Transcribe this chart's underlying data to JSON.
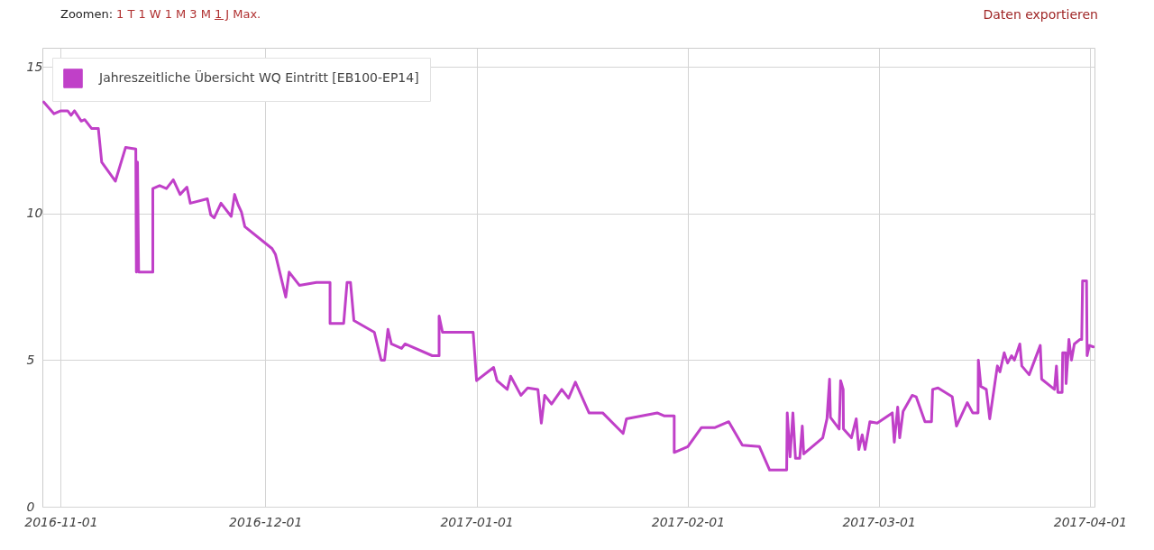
{
  "chart_data": {
    "type": "line",
    "annotations": [
      "Zoomen:",
      "1 T",
      "1 W",
      "1 M",
      "3 M",
      "1 J",
      "Max.",
      "Daten exportieren"
    ],
    "x": [
      "2016-10-29T12:00",
      "2016-10-31",
      "2016-11-01",
      "2016-11-02",
      "2016-11-02T12:00",
      "2016-11-03",
      "2016-11-04",
      "2016-11-04T12:00",
      "2016-11-05T12:00",
      "2016-11-06T12:00",
      "2016-11-07",
      "2016-11-09",
      "2016-11-10T12:00",
      "2016-11-12",
      "2016-11-12T02:00",
      "2016-11-12T06:00",
      "2016-11-12T10:00",
      "2016-11-14T12:00",
      "2016-11-14T12:00",
      "2016-11-15T12:00",
      "2016-11-16T12:00",
      "2016-11-17T12:00",
      "2016-11-18T12:00",
      "2016-11-19T12:00",
      "2016-11-20",
      "2016-11-22T12:00",
      "2016-11-23",
      "2016-11-23T12:00",
      "2016-11-24T12:00",
      "2016-11-26",
      "2016-11-26T12:00",
      "2016-11-27",
      "2016-11-27T12:00",
      "2016-11-28",
      "2016-12-02",
      "2016-12-02T12:00",
      "2016-12-04",
      "2016-12-04T12:00",
      "2016-12-06",
      "2016-12-08T12:00",
      "2016-12-10T12:00",
      "2016-12-10T12:00",
      "2016-12-12T12:00",
      "2016-12-13",
      "2016-12-13T12:00",
      "2016-12-14",
      "2016-12-17",
      "2016-12-18",
      "2016-12-18T12:00",
      "2016-12-19",
      "2016-12-19T12:00",
      "2016-12-21",
      "2016-12-21T12:00",
      "2016-12-25T12:00",
      "2016-12-26T12:00",
      "2016-12-26T12:00",
      "2016-12-27",
      "2016-12-31T12:00",
      "2017-01-01",
      "2017-01-03T12:00",
      "2017-01-04",
      "2017-01-05T12:00",
      "2017-01-06",
      "2017-01-07T12:00",
      "2017-01-08T12:00",
      "2017-01-10",
      "2017-01-10T12:00",
      "2017-01-11",
      "2017-01-12",
      "2017-01-13T12:00",
      "2017-01-14T12:00",
      "2017-01-15T12:00",
      "2017-01-17T12:00",
      "2017-01-19T12:00",
      "2017-01-22T12:00",
      "2017-01-23",
      "2017-01-27T12:00",
      "2017-01-28T12:00",
      "2017-01-30",
      "2017-01-30",
      "2017-02-01",
      "2017-02-03",
      "2017-02-05",
      "2017-02-07",
      "2017-02-09",
      "2017-02-11T12:00",
      "2017-02-13",
      "2017-02-15T12:00",
      "2017-02-15T14:00",
      "2017-02-16T00:00",
      "2017-02-16T10:00",
      "2017-02-16T19:00",
      "2017-02-17T10:00",
      "2017-02-17T19:00",
      "2017-02-18T00:00",
      "2017-02-20T19:00",
      "2017-02-21T10:00",
      "2017-02-21T19:00",
      "2017-02-21T22:00",
      "2017-02-23T05:00",
      "2017-02-23T10:00",
      "2017-02-23T19:00",
      "2017-02-23T20:00",
      "2017-02-25T00:00",
      "2017-02-25T17:00",
      "2017-02-26T02:00",
      "2017-02-26T14:00",
      "2017-02-27T00:00",
      "2017-02-27T17:00",
      "2017-02-28T19:00",
      "2017-03-03T00:00",
      "2017-03-03T07:00",
      "2017-03-03T19:00",
      "2017-03-04T02:00",
      "2017-03-04T14:00",
      "2017-03-05T22:00",
      "2017-03-06T12:00",
      "2017-03-07T19:00",
      "2017-03-08T18:00",
      "2017-03-08T22:00",
      "2017-03-09T17:00",
      "2017-03-11T19:00",
      "2017-03-12T10:00",
      "2017-03-14T00:00",
      "2017-03-14T19:00",
      "2017-03-15T14:00",
      "2017-03-15T15:00",
      "2017-03-16T00:00",
      "2017-03-16T19:00",
      "2017-03-17T07:00",
      "2017-03-18T10:00",
      "2017-03-18T19:00",
      "2017-03-19T10:00",
      "2017-03-19T22:00",
      "2017-03-20T12:00",
      "2017-03-20T22:00",
      "2017-03-21T17:00",
      "2017-03-22T00:00",
      "2017-03-23T02:00",
      "2017-03-24T17:00",
      "2017-03-24T22:00",
      "2017-03-26T19:00",
      "2017-03-27T02:00",
      "2017-03-27T07:00",
      "2017-03-27T22:00",
      "2017-03-28T00:00",
      "2017-03-28T10:00",
      "2017-03-28T12:00",
      "2017-03-28T22:00",
      "2017-03-29T07:00",
      "2017-03-29T17:00",
      "2017-03-30T12:00",
      "2017-03-30T19:00",
      "2017-03-30T22:00",
      "2017-03-31T12:00",
      "2017-03-31T14:00",
      "2017-03-31T22:00",
      "2017-04-01T12:00"
    ],
    "series": [
      {
        "name": "Jahreszeitliche Übersicht WQ Eintritt [EB100-EP14]",
        "color": "#c040c8",
        "values": [
          13.8,
          13.4,
          13.5,
          13.5,
          13.35,
          13.5,
          13.15,
          13.2,
          12.9,
          12.9,
          11.75,
          11.1,
          12.25,
          12.2,
          8.0,
          11.75,
          8.0,
          8.0,
          10.85,
          10.95,
          10.85,
          11.15,
          10.65,
          10.9,
          10.35,
          10.5,
          9.95,
          9.85,
          10.35,
          9.9,
          10.65,
          10.3,
          10.05,
          9.55,
          8.8,
          8.6,
          7.15,
          8.0,
          7.55,
          7.65,
          7.65,
          6.25,
          6.25,
          7.65,
          7.65,
          6.35,
          5.95,
          5.0,
          5.0,
          6.05,
          5.55,
          5.4,
          5.55,
          5.15,
          5.15,
          6.5,
          5.95,
          5.95,
          4.3,
          4.75,
          4.3,
          4.0,
          4.45,
          3.8,
          4.05,
          4.0,
          2.85,
          3.8,
          3.5,
          4.0,
          3.7,
          4.25,
          3.2,
          3.2,
          2.5,
          3.0,
          3.2,
          3.1,
          3.1,
          1.85,
          2.05,
          2.7,
          2.7,
          2.9,
          2.1,
          2.05,
          1.25,
          1.25,
          3.2,
          1.7,
          3.2,
          1.65,
          1.65,
          2.75,
          1.8,
          2.35,
          3.0,
          4.35,
          3.05,
          2.65,
          4.3,
          4.0,
          2.65,
          2.35,
          3.0,
          1.95,
          2.45,
          1.95,
          2.9,
          2.85,
          3.2,
          2.2,
          3.4,
          2.35,
          3.25,
          3.8,
          3.75,
          2.9,
          2.9,
          4.0,
          4.05,
          3.75,
          2.75,
          3.55,
          3.2,
          3.2,
          5.0,
          4.1,
          4.0,
          3.0,
          4.8,
          4.6,
          5.25,
          4.9,
          5.15,
          5.0,
          5.55,
          4.8,
          4.5,
          5.5,
          4.35,
          4.0,
          4.8,
          3.9,
          3.9,
          5.25,
          5.25,
          4.2,
          5.7,
          5.0,
          5.55,
          5.7,
          5.7,
          7.7,
          7.7,
          5.15,
          5.5,
          5.45
        ]
      }
    ],
    "xlim": [
      "2016-10-29T07:00",
      "2017-04-01T16:00"
    ],
    "xticks": [
      "2016-11-01",
      "2016-12-01",
      "2017-01-01",
      "2017-02-01",
      "2017-03-01",
      "2017-04-01"
    ],
    "ylim": [
      0,
      15.65
    ],
    "yticks": [
      0,
      5,
      10,
      15
    ],
    "grid": true,
    "legend": "top left",
    "line_style": "solid"
  }
}
